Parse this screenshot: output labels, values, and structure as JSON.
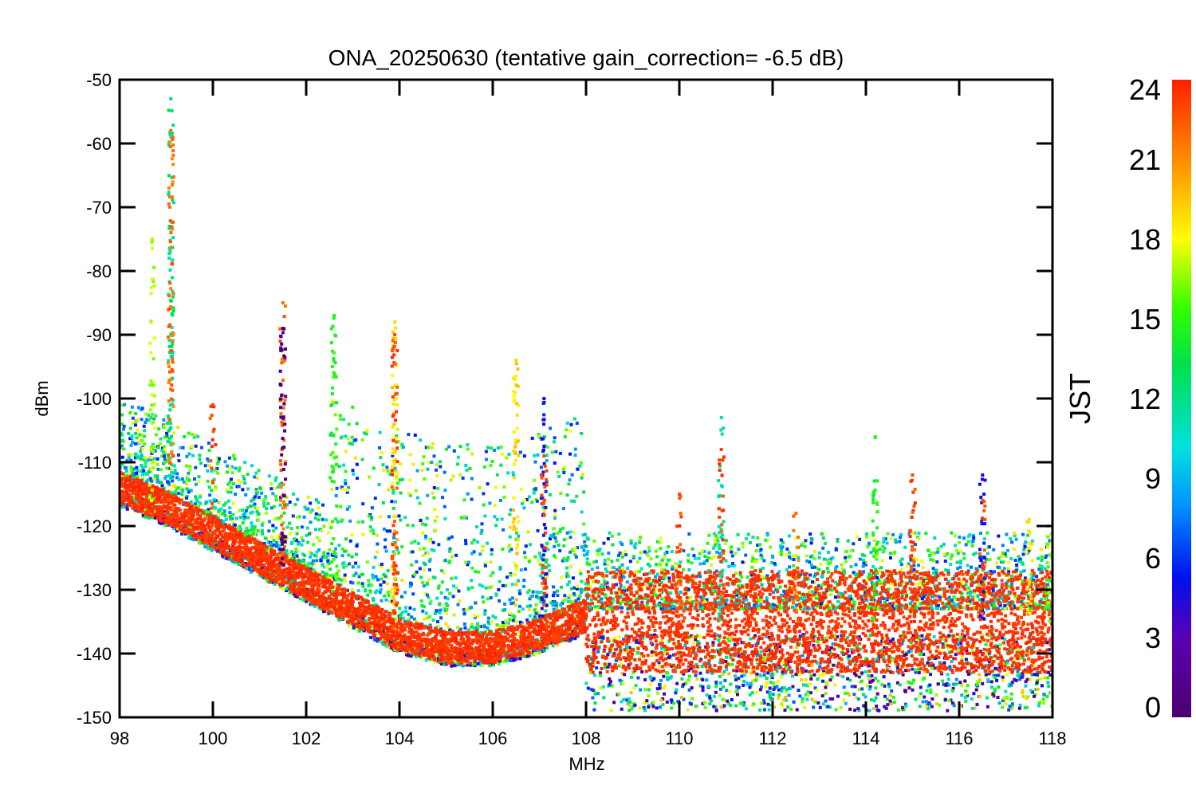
{
  "chart_data": {
    "type": "scatter",
    "title": "ONA_20250630 (tentative gain_correction= -6.5 dB)",
    "xlabel": "MHz",
    "ylabel": "dBm",
    "xlim": [
      98,
      118
    ],
    "ylim": [
      -150,
      -50
    ],
    "x_ticks": [
      98,
      100,
      102,
      104,
      106,
      108,
      110,
      112,
      114,
      116,
      118
    ],
    "y_ticks": [
      -50,
      -60,
      -70,
      -80,
      -90,
      -100,
      -110,
      -120,
      -130,
      -140,
      -150
    ],
    "colorbar": {
      "label": "JST",
      "range": [
        0,
        24
      ],
      "ticks": [
        0,
        3,
        6,
        9,
        12,
        15,
        18,
        21,
        24
      ],
      "colormap": "rainbow"
    },
    "grid": false,
    "noise_floor": {
      "x": [
        98,
        99,
        100,
        101,
        102,
        103,
        104,
        105,
        106,
        107,
        108,
        108.01,
        110,
        112,
        114,
        116,
        118
      ],
      "y": [
        -114,
        -117,
        -121,
        -125,
        -129,
        -133,
        -137,
        -139,
        -139,
        -137,
        -134,
        -135,
        -135,
        -135,
        -135,
        -135,
        -135
      ]
    },
    "peaks": [
      {
        "x": 98.7,
        "y": -75,
        "jst": 17
      },
      {
        "x": 99.1,
        "y": -53,
        "jst": 12
      },
      {
        "x": 99.1,
        "y": -58,
        "jst": 22
      },
      {
        "x": 100.0,
        "y": -101,
        "jst": 23
      },
      {
        "x": 101.5,
        "y": -85,
        "jst": 22
      },
      {
        "x": 101.5,
        "y": -89,
        "jst": 1
      },
      {
        "x": 102.6,
        "y": -87,
        "jst": 15
      },
      {
        "x": 103.9,
        "y": -88,
        "jst": 19
      },
      {
        "x": 103.9,
        "y": -90,
        "jst": 23
      },
      {
        "x": 106.5,
        "y": -94,
        "jst": 19
      },
      {
        "x": 107.1,
        "y": -100,
        "jst": 5
      },
      {
        "x": 107.1,
        "y": -109,
        "jst": 23
      },
      {
        "x": 110.0,
        "y": -115,
        "jst": 23
      },
      {
        "x": 110.9,
        "y": -103,
        "jst": 11
      },
      {
        "x": 110.9,
        "y": -108,
        "jst": 23
      },
      {
        "x": 112.5,
        "y": -118,
        "jst": 22
      },
      {
        "x": 114.2,
        "y": -106,
        "jst": 15
      },
      {
        "x": 115.0,
        "y": -112,
        "jst": 23
      },
      {
        "x": 116.5,
        "y": -112,
        "jst": 5
      },
      {
        "x": 116.5,
        "y": -116,
        "jst": 23
      },
      {
        "x": 117.5,
        "y": -119,
        "jst": 19
      },
      {
        "x": 117.9,
        "y": -120,
        "jst": 16
      }
    ]
  }
}
